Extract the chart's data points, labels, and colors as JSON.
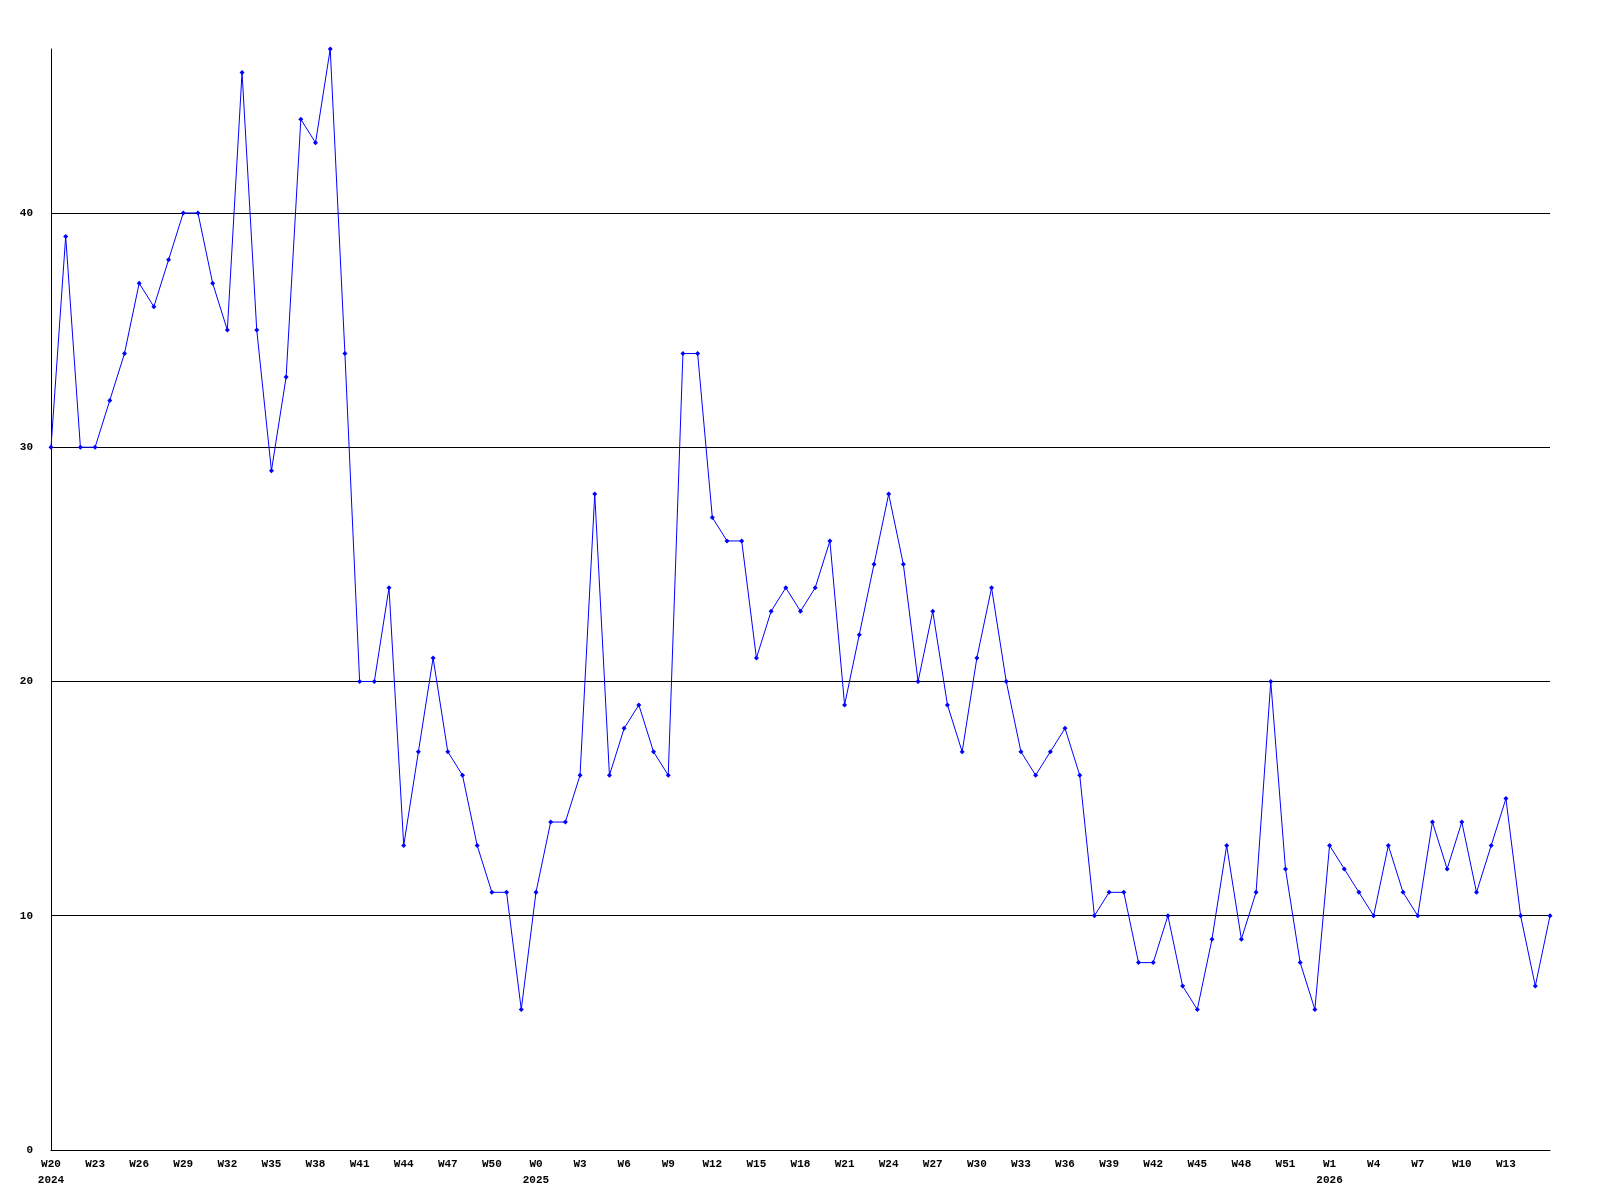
{
  "chart_data": {
    "type": "line",
    "categories": [
      "W20\n2024",
      null,
      null,
      "W23",
      null,
      null,
      "W26",
      null,
      null,
      "W29",
      null,
      null,
      "W32",
      null,
      null,
      "W35",
      null,
      null,
      "W38",
      null,
      null,
      "W41",
      null,
      null,
      "W44",
      null,
      null,
      "W47",
      null,
      null,
      "W50",
      null,
      null,
      "W0\n2025",
      null,
      null,
      "W3",
      null,
      null,
      "W6",
      null,
      null,
      "W9",
      null,
      null,
      "W12",
      null,
      null,
      "W15",
      null,
      null,
      "W18",
      null,
      null,
      "W21",
      null,
      null,
      "W24",
      null,
      null,
      "W27",
      null,
      null,
      "W30",
      null,
      null,
      "W33",
      null,
      null,
      "W36",
      null,
      null,
      "W39",
      null,
      null,
      "W42",
      null,
      null,
      "W45",
      null,
      null,
      "W48",
      null,
      null,
      "W51",
      null,
      null,
      "W1\n2026",
      null,
      null,
      "W4",
      null,
      null,
      "W7",
      null,
      null,
      "W10",
      null,
      null,
      "W13",
      null,
      null,
      null
    ],
    "series": [
      {
        "color": "#0000ff",
        "values": [
          30,
          39,
          30,
          30,
          32,
          34,
          37,
          36,
          38,
          40,
          40,
          37,
          35,
          46,
          35,
          29,
          33,
          44,
          43,
          47,
          34,
          20,
          20,
          24,
          13,
          17,
          21,
          17,
          16,
          13,
          11,
          11,
          6,
          11,
          14,
          14,
          16,
          28,
          16,
          18,
          19,
          17,
          16,
          34,
          34,
          27,
          26,
          26,
          21,
          23,
          24,
          23,
          24,
          26,
          19,
          22,
          25,
          28,
          25,
          20,
          23,
          19,
          17,
          21,
          24,
          20,
          17,
          16,
          17,
          18,
          16,
          10,
          11,
          11,
          8,
          8,
          10,
          7,
          6,
          9,
          13,
          9,
          11,
          20,
          12,
          8,
          6,
          13,
          12,
          11,
          10,
          13,
          11,
          10,
          14,
          12,
          14,
          11,
          13,
          15,
          10,
          7,
          10
        ]
      }
    ],
    "ylim": [
      0,
      47
    ],
    "yticks": [
      0,
      10,
      20,
      30,
      40
    ],
    "grid": "y",
    "marker": "diamond",
    "line_style": "solid"
  }
}
